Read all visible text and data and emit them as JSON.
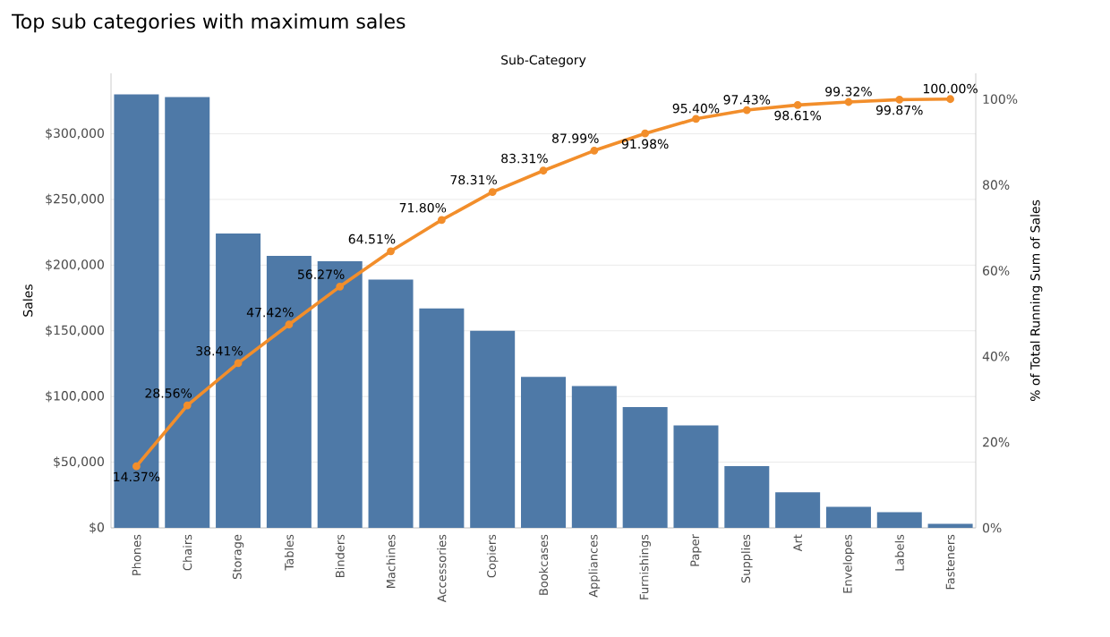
{
  "chart_data": {
    "type": "bar",
    "title": "Top sub categories with maximum sales",
    "xlabel": "Sub-Category",
    "ylabel": "Sales",
    "y2label": "% of Total Running Sum of Sales",
    "categories": [
      "Phones",
      "Chairs",
      "Storage",
      "Tables",
      "Binders",
      "Machines",
      "Accessories",
      "Copiers",
      "Bookcases",
      "Appliances",
      "Furnishings",
      "Paper",
      "Supplies",
      "Art",
      "Envelopes",
      "Labels",
      "Fasteners"
    ],
    "series": [
      {
        "color": "#4e79a7",
        "values": [
          330000,
          328000,
          224000,
          207000,
          203000,
          189000,
          167000,
          150000,
          115000,
          108000,
          92000,
          78000,
          47000,
          27000,
          16000,
          12000,
          3000
        ]
      },
      {
        "type": "line",
        "axis": "y2",
        "color": "#f28e2b",
        "marker": "circle",
        "values": [
          14.37,
          28.56,
          38.41,
          47.42,
          56.27,
          64.51,
          71.8,
          78.31,
          83.31,
          87.99,
          91.98,
          95.4,
          97.43,
          98.61,
          99.32,
          99.87,
          100.0
        ],
        "value_labels": [
          "14.37%",
          "28.56%",
          "38.41%",
          "47.42%",
          "56.27%",
          "64.51%",
          "71.80%",
          "78.31%",
          "83.31%",
          "87.99%",
          "91.98%",
          "95.40%",
          "97.43%",
          "98.61%",
          "99.32%",
          "99.87%",
          "100.00%"
        ]
      }
    ],
    "ylim": [
      0,
      346000
    ],
    "yticks": [
      {
        "value": 0,
        "label": "$0"
      },
      {
        "value": 50000,
        "label": "$50,000"
      },
      {
        "value": 100000,
        "label": "$100,000"
      },
      {
        "value": 150000,
        "label": "$150,000"
      },
      {
        "value": 200000,
        "label": "$200,000"
      },
      {
        "value": 250000,
        "label": "$250,000"
      },
      {
        "value": 300000,
        "label": "$300,000"
      }
    ],
    "y2lim": [
      0,
      106
    ],
    "y2ticks": [
      {
        "value": 0,
        "label": "0%"
      },
      {
        "value": 20,
        "label": "20%"
      },
      {
        "value": 40,
        "label": "40%"
      },
      {
        "value": 60,
        "label": "60%"
      },
      {
        "value": 80,
        "label": "80%"
      },
      {
        "value": 100,
        "label": "100%"
      }
    ],
    "grid": "y"
  }
}
